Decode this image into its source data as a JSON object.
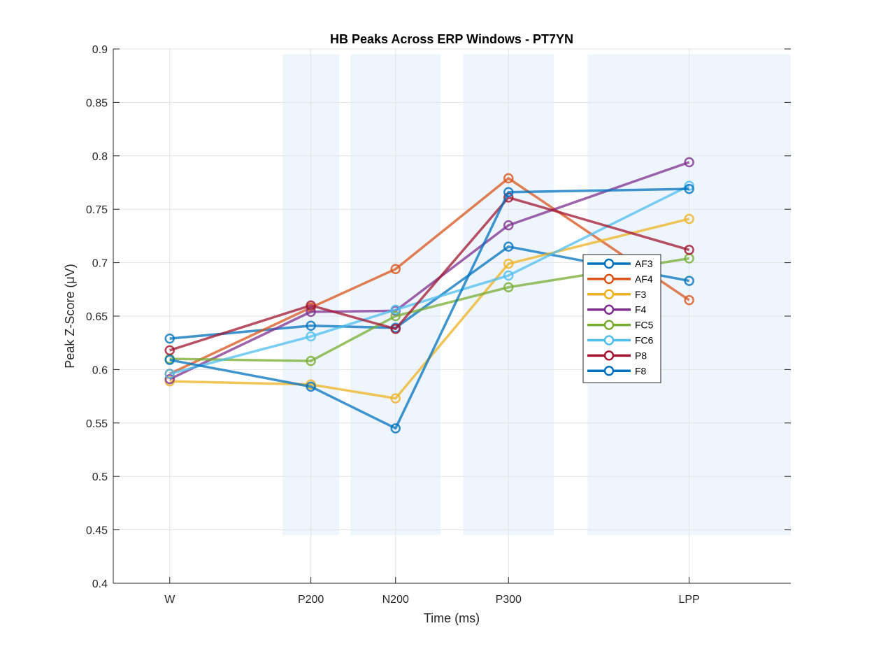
{
  "chart_data": {
    "type": "line",
    "title": "HB Peaks Across ERP Windows - PT7YN",
    "xlabel": "Time (ms)",
    "ylabel": "Peak Z-Score (μV)",
    "categories": [
      "W",
      "P200",
      "N200",
      "P300",
      "LPP"
    ],
    "x_positions": [
      0,
      250,
      400,
      600,
      920
    ],
    "xlim": [
      -100,
      1100
    ],
    "ylim": [
      0.4,
      0.9
    ],
    "yticks": [
      0.4,
      0.45,
      0.5,
      0.55,
      0.6,
      0.65,
      0.7,
      0.75,
      0.8,
      0.85,
      0.9
    ],
    "ytick_labels": [
      "0.4",
      "0.45",
      "0.5",
      "0.55",
      "0.6",
      "0.65",
      "0.7",
      "0.75",
      "0.8",
      "0.85",
      "0.9"
    ],
    "grid": true,
    "legend_position": "center-right",
    "shaded_windows": [
      {
        "label": "P200",
        "range": [
          200,
          300
        ]
      },
      {
        "label": "N200",
        "range": [
          320,
          480
        ]
      },
      {
        "label": "P300",
        "range": [
          520,
          680
        ]
      },
      {
        "label": "LPP",
        "range": [
          740,
          1100
        ]
      }
    ],
    "shade_ylim": [
      0.445,
      0.895
    ],
    "shade_color": "#eef5fd",
    "series": [
      {
        "name": "AF3",
        "color": "#0072bd",
        "values": [
          0.629,
          0.641,
          0.639,
          0.715,
          0.683
        ]
      },
      {
        "name": "AF4",
        "color": "#d95319",
        "values": [
          0.596,
          0.658,
          0.694,
          0.779,
          0.665
        ]
      },
      {
        "name": "F3",
        "color": "#edb120",
        "values": [
          0.589,
          0.586,
          0.573,
          0.699,
          0.741
        ]
      },
      {
        "name": "F4",
        "color": "#7e2f8e",
        "values": [
          0.591,
          0.654,
          0.655,
          0.735,
          0.794
        ]
      },
      {
        "name": "FC5",
        "color": "#77ac30",
        "values": [
          0.61,
          0.608,
          0.65,
          0.677,
          0.704
        ]
      },
      {
        "name": "FC6",
        "color": "#4dbeee",
        "values": [
          0.596,
          0.631,
          0.656,
          0.688,
          0.772
        ]
      },
      {
        "name": "P8",
        "color": "#a2142f",
        "values": [
          0.618,
          0.66,
          0.638,
          0.761,
          0.712
        ]
      },
      {
        "name": "F8",
        "color": "#0072bd",
        "values": [
          0.609,
          0.584,
          0.545,
          0.766,
          0.769
        ]
      }
    ]
  }
}
